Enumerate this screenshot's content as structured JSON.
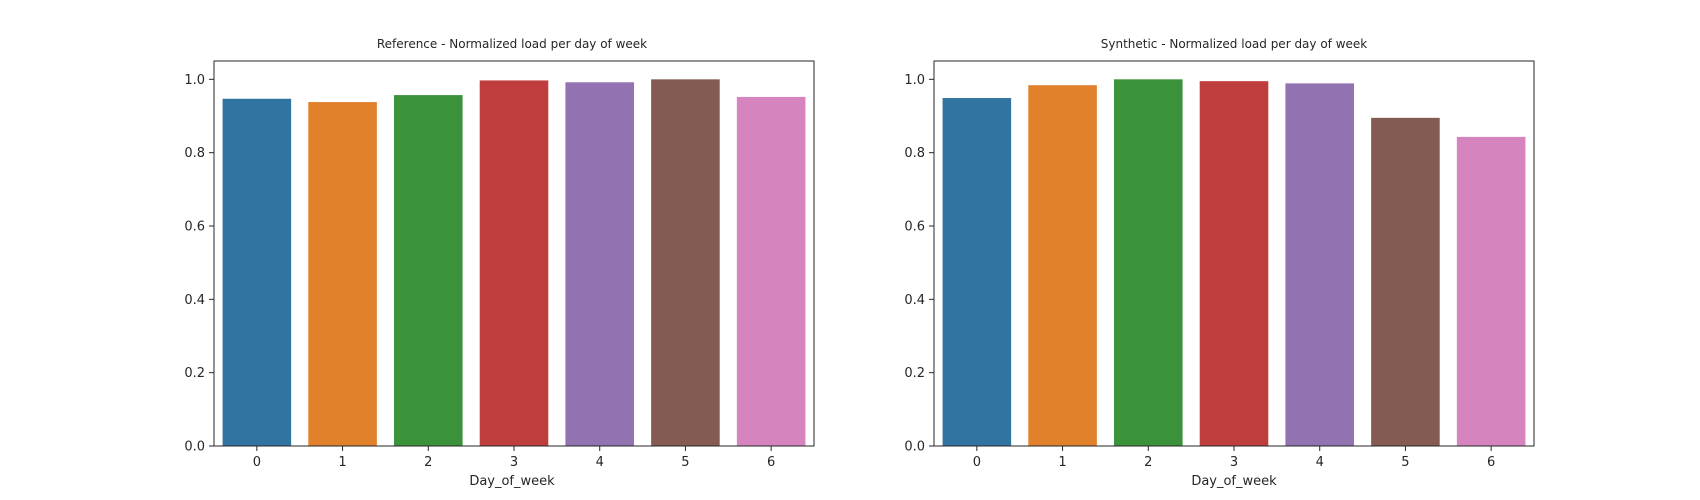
{
  "chart_data": [
    {
      "type": "bar",
      "title": "Reference - Normalized load per day of week",
      "xlabel": "Day_of_week",
      "ylabel": "",
      "categories": [
        "0",
        "1",
        "2",
        "3",
        "4",
        "5",
        "6"
      ],
      "values": [
        0.947,
        0.938,
        0.957,
        0.997,
        0.992,
        1.0,
        0.952
      ],
      "colors": [
        "#3274a1",
        "#e1812c",
        "#3a923a",
        "#c03d3e",
        "#9372b2",
        "#845b53",
        "#d684bd"
      ],
      "ylim": [
        0,
        1.05
      ],
      "yticks": [
        "0.0",
        "0.2",
        "0.4",
        "0.6",
        "0.8",
        "1.0"
      ],
      "grid": false,
      "legend": "none"
    },
    {
      "type": "bar",
      "title": "Synthetic - Normalized load per day of week",
      "xlabel": "Day_of_week",
      "ylabel": "",
      "categories": [
        "0",
        "1",
        "2",
        "3",
        "4",
        "5",
        "6"
      ],
      "values": [
        0.949,
        0.984,
        1.0,
        0.995,
        0.989,
        0.895,
        0.843
      ],
      "colors": [
        "#3274a1",
        "#e1812c",
        "#3a923a",
        "#c03d3e",
        "#9372b2",
        "#845b53",
        "#d684bd"
      ],
      "ylim": [
        0,
        1.05
      ],
      "yticks": [
        "0.0",
        "0.2",
        "0.4",
        "0.6",
        "0.8",
        "1.0"
      ],
      "grid": false,
      "legend": "none"
    }
  ]
}
